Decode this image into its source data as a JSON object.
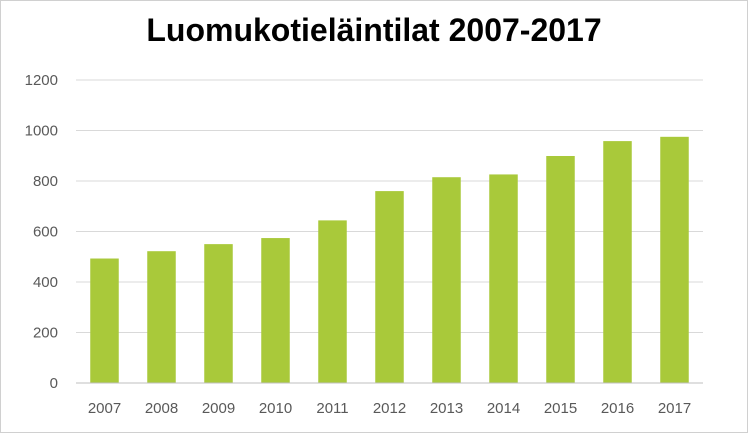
{
  "chart_data": {
    "type": "bar",
    "title": "Luomukotieläintilat 2007-2017",
    "xlabel": "",
    "ylabel": "",
    "categories": [
      "2007",
      "2008",
      "2009",
      "2010",
      "2011",
      "2012",
      "2013",
      "2014",
      "2015",
      "2016",
      "2017"
    ],
    "values": [
      493,
      522,
      550,
      574,
      644,
      760,
      815,
      826,
      899,
      958,
      975
    ],
    "ylim": [
      0,
      1200
    ],
    "yticks": [
      0,
      200,
      400,
      600,
      800,
      1000,
      1200
    ],
    "grid": true,
    "legend": "none",
    "colors": {
      "bar": "#a9c93a",
      "grid": "#d9d9d9",
      "axis": "#bfbfbf",
      "tick_text": "#595959"
    }
  }
}
